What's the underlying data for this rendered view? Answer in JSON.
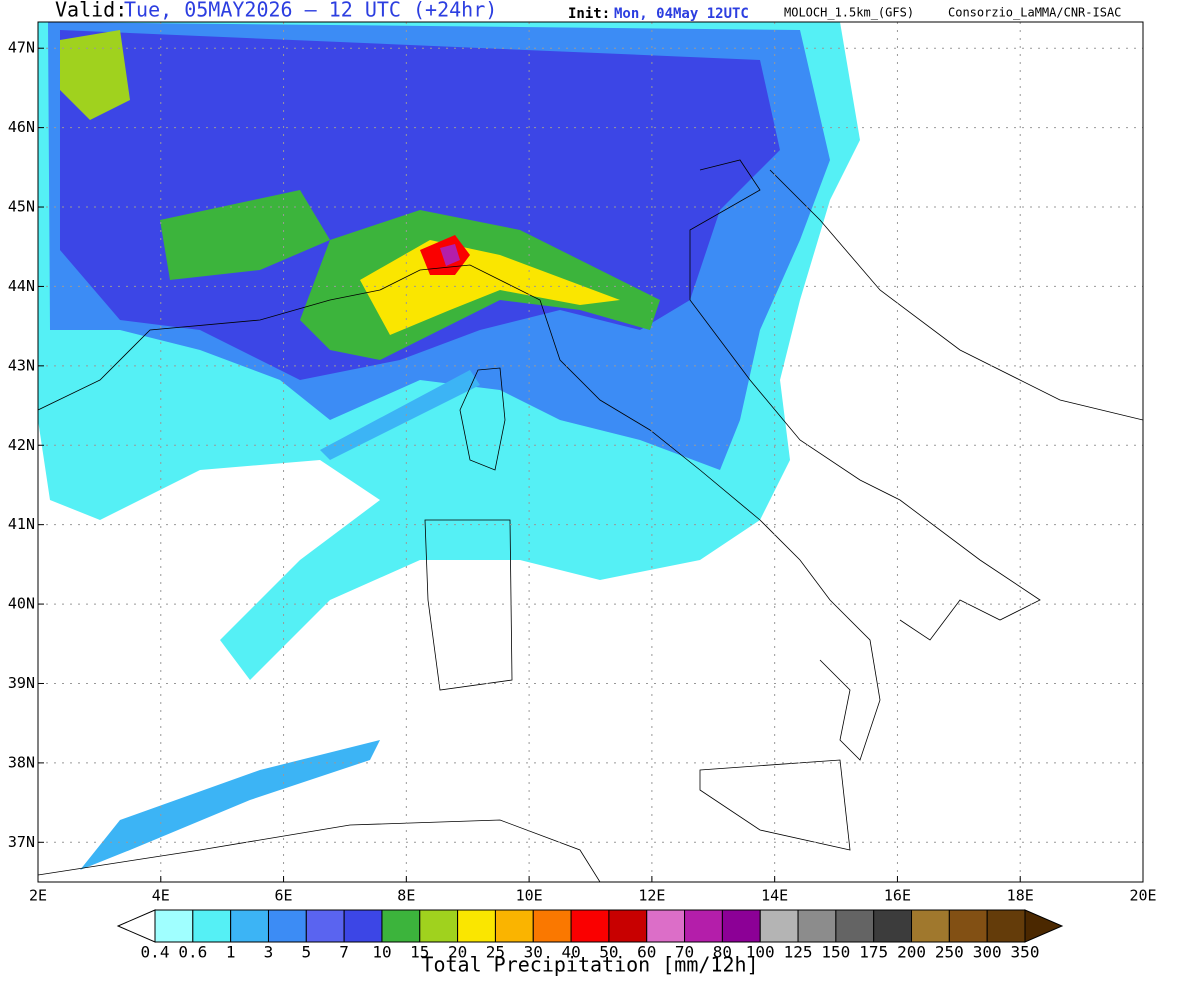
{
  "header": {
    "valid_label": "Valid:",
    "valid_time": "Tue, 05MAY2026 — 12 UTC (+24hr)",
    "init_label": "Init:",
    "init_time": "Mon, 04May 12UTC",
    "model": "MOLOCH_1.5km_(GFS)",
    "credit": "Consorzio_LaMMA/CNR-ISAC"
  },
  "map": {
    "xlim": [
      2,
      20
    ],
    "ylim": [
      36.5,
      47.33
    ],
    "xticks": [
      {
        "value": 2,
        "label": "2E"
      },
      {
        "value": 4,
        "label": "4E"
      },
      {
        "value": 6,
        "label": "6E"
      },
      {
        "value": 8,
        "label": "8E"
      },
      {
        "value": 10,
        "label": "10E"
      },
      {
        "value": 12,
        "label": "12E"
      },
      {
        "value": 14,
        "label": "14E"
      },
      {
        "value": 16,
        "label": "16E"
      },
      {
        "value": 18,
        "label": "18E"
      },
      {
        "value": 20,
        "label": "20E"
      }
    ],
    "yticks": [
      {
        "value": 37,
        "label": "37N"
      },
      {
        "value": 38,
        "label": "38N"
      },
      {
        "value": 39,
        "label": "39N"
      },
      {
        "value": 40,
        "label": "40N"
      },
      {
        "value": 41,
        "label": "41N"
      },
      {
        "value": 42,
        "label": "42N"
      },
      {
        "value": 43,
        "label": "43N"
      },
      {
        "value": 44,
        "label": "44N"
      },
      {
        "value": 45,
        "label": "45N"
      },
      {
        "value": 46,
        "label": "46N"
      },
      {
        "value": 47,
        "label": "47N"
      }
    ]
  },
  "legend": {
    "title": "Total Precipitation [mm/12h]",
    "levels": [
      0.4,
      0.6,
      1,
      3,
      5,
      7,
      10,
      15,
      20,
      25,
      30,
      40,
      50,
      60,
      70,
      80,
      100,
      125,
      150,
      175,
      200,
      250,
      300,
      350
    ],
    "colors": [
      "#ffffff",
      "#a0ffff",
      "#55f0f5",
      "#3cb4f5",
      "#3c8cf5",
      "#5a64f0",
      "#3c46e6",
      "#3cb43c",
      "#a0d21e",
      "#fae600",
      "#fab400",
      "#fa7800",
      "#fa0000",
      "#c80000",
      "#dc6ec8",
      "#b41eaa",
      "#8c0096",
      "#b4b4b4",
      "#8c8c8c",
      "#646464",
      "#3c3c3c",
      "#a0782d",
      "#825014",
      "#643c0a",
      "#4b2800"
    ]
  }
}
